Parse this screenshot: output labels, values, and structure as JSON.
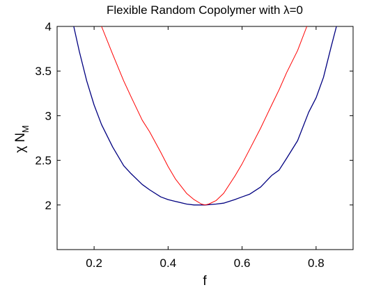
{
  "chart_data": {
    "type": "line",
    "title": "Flexible Random Copolymer with λ=0",
    "xlabel": "f",
    "ylabel_main": "χ N",
    "ylabel_sub": "M",
    "xlim": [
      0.1,
      0.9
    ],
    "ylim": [
      1.5,
      4.0
    ],
    "x_ticks": [
      0.2,
      0.4,
      0.6,
      0.8
    ],
    "x_tick_labels": [
      "0.2",
      "0.4",
      "0.6",
      "0.8"
    ],
    "y_ticks": [
      2,
      2.5,
      3,
      3.5,
      4
    ],
    "y_tick_labels": [
      "2",
      "2.5",
      "3",
      "3.5",
      "4"
    ],
    "grid": false,
    "series": [
      {
        "color": "#000080",
        "x": [
          0.145,
          0.16,
          0.18,
          0.2,
          0.22,
          0.25,
          0.28,
          0.3,
          0.33,
          0.35,
          0.38,
          0.4,
          0.42,
          0.45,
          0.47,
          0.5,
          0.53,
          0.55,
          0.58,
          0.6,
          0.62,
          0.65,
          0.68,
          0.7,
          0.72,
          0.75,
          0.78,
          0.8,
          0.82,
          0.84,
          0.855
        ],
        "y": [
          4.0,
          3.72,
          3.39,
          3.12,
          2.9,
          2.65,
          2.44,
          2.35,
          2.23,
          2.17,
          2.09,
          2.06,
          2.04,
          2.01,
          2.0,
          2.0,
          2.01,
          2.02,
          2.06,
          2.09,
          2.12,
          2.2,
          2.33,
          2.39,
          2.52,
          2.72,
          3.04,
          3.2,
          3.43,
          3.76,
          4.0
        ]
      },
      {
        "color": "#ff0000",
        "x": [
          0.22,
          0.25,
          0.28,
          0.3,
          0.33,
          0.35,
          0.38,
          0.4,
          0.42,
          0.45,
          0.47,
          0.49,
          0.5,
          0.51,
          0.53,
          0.55,
          0.58,
          0.6,
          0.62,
          0.65,
          0.68,
          0.7,
          0.72,
          0.75,
          0.775
        ],
        "y": [
          4.0,
          3.69,
          3.39,
          3.21,
          2.95,
          2.82,
          2.59,
          2.43,
          2.29,
          2.13,
          2.06,
          2.01,
          2.0,
          2.01,
          2.05,
          2.13,
          2.32,
          2.46,
          2.62,
          2.86,
          3.12,
          3.29,
          3.48,
          3.73,
          4.0
        ]
      }
    ]
  }
}
